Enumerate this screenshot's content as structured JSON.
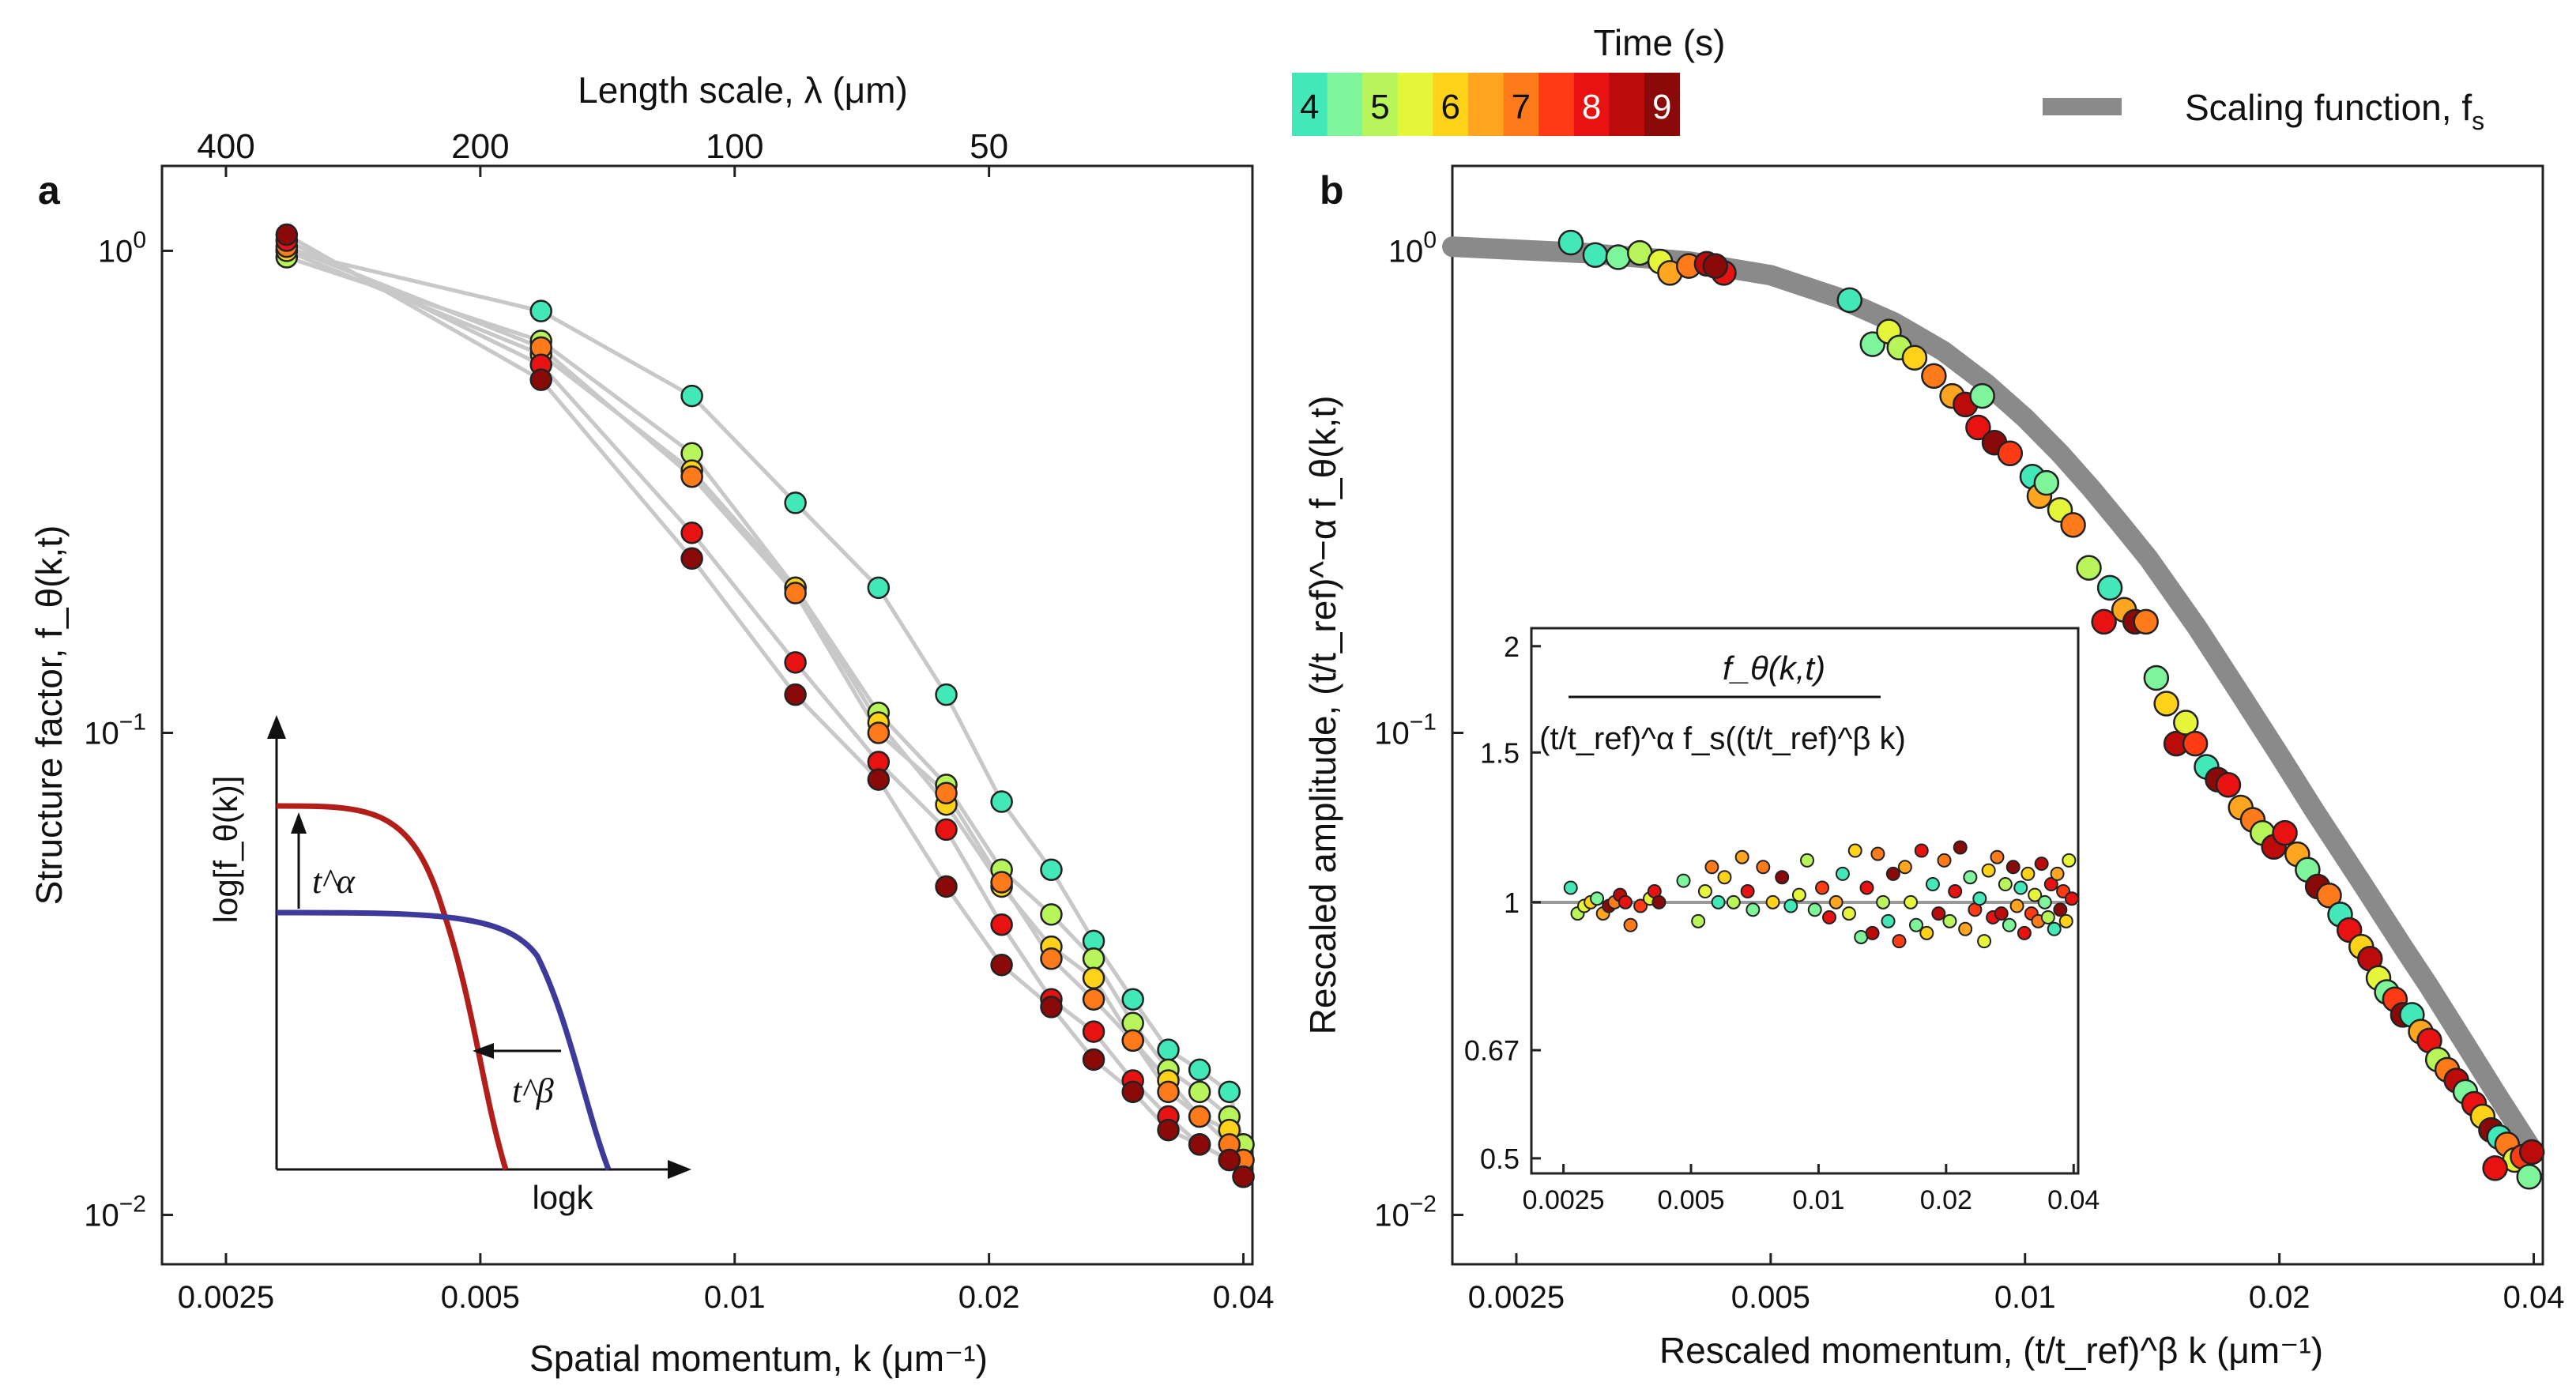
{
  "colorbar": {
    "title": "Time (s)",
    "labels": [
      "4",
      "5",
      "6",
      "7",
      "8",
      "9"
    ],
    "swatches": [
      "#43e8b8",
      "#7ef59a",
      "#b8f55a",
      "#e5f53a",
      "#ffd21a",
      "#ffa520",
      "#ff7a1a",
      "#ff3b14",
      "#e81212",
      "#bc0b0b",
      "#8a0a0a"
    ]
  },
  "legend": {
    "label": "Scaling function, f",
    "sub": "s",
    "color": "#8a8a8a"
  },
  "panel_a": {
    "label": "a",
    "top_axis_title": "Length scale, λ (μm)",
    "top_ticks": [
      {
        "label": "400",
        "k": 0.0025
      },
      {
        "label": "200",
        "k": 0.005
      },
      {
        "label": "100",
        "k": 0.01
      },
      {
        "label": "50",
        "k": 0.02
      }
    ],
    "xlabel": "Spatial momentum, k (μm⁻¹)",
    "ylabel": "Structure factor, f_θ(k,t)",
    "inset": {
      "ylabel": "log[f_θ(k)]",
      "xlabel": "logk",
      "arrow_up": "t^α",
      "arrow_left": "t^β",
      "line_colors": [
        "#b21f1a",
        "#3d3a9c"
      ]
    }
  },
  "panel_b": {
    "label": "b",
    "xlabel": "Rescaled momentum, (t/t_ref)^β k (μm⁻¹)",
    "ylabel": "Rescaled amplitude, (t/t_ref)^−α f_θ(k,t)",
    "inset": {
      "numerator": "f_θ(k,t)",
      "denominator": "(t/t_ref)^α f_s((t/t_ref)^β k)",
      "yticks": [
        "2",
        "1.5",
        "1",
        "0.67",
        "0.5"
      ],
      "xticks": [
        "0.0025",
        "0.005",
        "0.01",
        "0.02",
        "0.04"
      ]
    }
  },
  "chart_data": [
    {
      "type": "scatter",
      "title": "a",
      "xscale": "log",
      "yscale": "log",
      "xlim": [
        0.0021,
        0.041
      ],
      "ylim": [
        0.0079,
        1.5
      ],
      "xticks": [
        0.0025,
        0.005,
        0.01,
        0.02,
        0.04
      ],
      "xtick_labels": [
        "0.0025",
        "0.005",
        "0.01",
        "0.02",
        "0.04"
      ],
      "yticks": [
        1,
        0.1,
        0.01
      ],
      "ytick_labels": [
        "10",
        "10",
        "10"
      ],
      "ytick_exps": [
        "0",
        "−1",
        "−2"
      ],
      "k": [
        0.00295,
        0.0059,
        0.0089,
        0.0118,
        0.0148,
        0.0178,
        0.0207,
        0.0237,
        0.0266,
        0.0296,
        0.0326,
        0.0355,
        0.0385,
        0.04
      ],
      "series": [
        {
          "name": "t=4 s",
          "color": "#43e8b8",
          "values": [
            1.0,
            0.75,
            0.5,
            0.3,
            0.2,
            0.12,
            0.072,
            0.052,
            0.037,
            0.028,
            0.022,
            0.02,
            0.018,
            0.014
          ]
        },
        {
          "name": "t=5 s",
          "color": "#b8f55a",
          "values": [
            0.97,
            0.65,
            0.38,
            0.2,
            0.11,
            0.078,
            0.052,
            0.042,
            0.034,
            0.025,
            0.02,
            0.018,
            0.016,
            0.014
          ]
        },
        {
          "name": "t=6 s",
          "color": "#ffd21a",
          "values": [
            1.0,
            0.61,
            0.35,
            0.2,
            0.105,
            0.071,
            0.048,
            0.036,
            0.031,
            0.023,
            0.019,
            0.016,
            0.015,
            0.013
          ]
        },
        {
          "name": "t=7 s",
          "color": "#ff7a1a",
          "values": [
            1.02,
            0.63,
            0.34,
            0.195,
            0.1,
            0.075,
            0.049,
            0.034,
            0.028,
            0.023,
            0.018,
            0.016,
            0.014,
            0.013
          ]
        },
        {
          "name": "t=8 s",
          "color": "#e81212",
          "values": [
            1.05,
            0.58,
            0.26,
            0.14,
            0.087,
            0.063,
            0.04,
            0.028,
            0.024,
            0.019,
            0.016,
            0.014,
            0.013,
            0.012
          ]
        },
        {
          "name": "t=9 s",
          "color": "#8a0a0a",
          "values": [
            1.08,
            0.54,
            0.23,
            0.12,
            0.08,
            0.048,
            0.033,
            0.027,
            0.021,
            0.018,
            0.015,
            0.014,
            0.013,
            0.012
          ]
        }
      ]
    },
    {
      "type": "scatter",
      "title": "b",
      "xscale": "log",
      "yscale": "log",
      "xlim": [
        0.0021,
        0.041
      ],
      "ylim": [
        0.0079,
        1.5
      ],
      "xticks": [
        0.0025,
        0.005,
        0.01,
        0.02,
        0.04
      ],
      "xtick_labels": [
        "0.0025",
        "0.005",
        "0.01",
        "0.02",
        "0.04"
      ],
      "yticks": [
        1,
        0.1,
        0.01
      ],
      "ytick_labels": [
        "10",
        "10",
        "10"
      ],
      "ytick_exps": [
        "0",
        "−1",
        "−2"
      ],
      "scaling_function": {
        "x": [
          0.0021,
          0.003,
          0.004,
          0.005,
          0.006,
          0.007,
          0.008,
          0.009,
          0.01,
          0.011,
          0.012,
          0.013,
          0.014,
          0.016,
          0.018,
          0.02,
          0.022,
          0.025,
          0.028,
          0.03,
          0.033,
          0.036,
          0.04
        ],
        "y": [
          1.02,
          0.99,
          0.95,
          0.89,
          0.8,
          0.71,
          0.62,
          0.53,
          0.45,
          0.38,
          0.32,
          0.27,
          0.23,
          0.165,
          0.12,
          0.09,
          0.069,
          0.049,
          0.036,
          0.03,
          0.023,
          0.018,
          0.0135
        ]
      },
      "points": [
        [
          0.0029,
          1.04,
          "#43e8b8"
        ],
        [
          0.0031,
          0.98,
          "#43e8b8"
        ],
        [
          0.0033,
          0.97,
          "#7ef59a"
        ],
        [
          0.0035,
          0.99,
          "#b8f55a"
        ],
        [
          0.0037,
          0.95,
          "#e5f53a"
        ],
        [
          0.0038,
          0.9,
          "#ffa520"
        ],
        [
          0.004,
          0.93,
          "#ff7a1a"
        ],
        [
          0.0042,
          0.94,
          "#bc0b0b"
        ],
        [
          0.0044,
          0.9,
          "#e81212"
        ],
        [
          0.0043,
          0.93,
          "#8a0a0a"
        ],
        [
          0.0062,
          0.79,
          "#43e8b8"
        ],
        [
          0.0066,
          0.64,
          "#7ef59a"
        ],
        [
          0.0069,
          0.68,
          "#e5f53a"
        ],
        [
          0.0071,
          0.63,
          "#b8f55a"
        ],
        [
          0.0074,
          0.6,
          "#ffd21a"
        ],
        [
          0.0078,
          0.55,
          "#ff7a1a"
        ],
        [
          0.0082,
          0.5,
          "#ffa520"
        ],
        [
          0.0085,
          0.48,
          "#bc0b0b"
        ],
        [
          0.0089,
          0.5,
          "#7ef59a"
        ],
        [
          0.0088,
          0.43,
          "#e81212"
        ],
        [
          0.0092,
          0.4,
          "#8a0a0a"
        ],
        [
          0.0096,
          0.38,
          "#ff3b14"
        ],
        [
          0.0102,
          0.34,
          "#43e8b8"
        ],
        [
          0.0104,
          0.31,
          "#ffa520"
        ],
        [
          0.0106,
          0.33,
          "#7ef59a"
        ],
        [
          0.011,
          0.29,
          "#e5f53a"
        ],
        [
          0.0114,
          0.27,
          "#ff7a1a"
        ],
        [
          0.0119,
          0.22,
          "#b8f55a"
        ],
        [
          0.0124,
          0.17,
          "#e81212"
        ],
        [
          0.0126,
          0.2,
          "#43e8b8"
        ],
        [
          0.0131,
          0.18,
          "#ffa520"
        ],
        [
          0.0135,
          0.17,
          "#8a0a0a"
        ],
        [
          0.0139,
          0.17,
          "#ff7a1a"
        ],
        [
          0.0143,
          0.13,
          "#7ef59a"
        ],
        [
          0.0147,
          0.115,
          "#ffd21a"
        ],
        [
          0.0151,
          0.095,
          "#bc0b0b"
        ],
        [
          0.0155,
          0.105,
          "#e5f53a"
        ],
        [
          0.0159,
          0.095,
          "#ff3b14"
        ],
        [
          0.0164,
          0.085,
          "#43e8b8"
        ],
        [
          0.0169,
          0.08,
          "#8a0a0a"
        ],
        [
          0.0174,
          0.078,
          "#e81212"
        ],
        [
          0.018,
          0.07,
          "#ffa520"
        ],
        [
          0.0186,
          0.066,
          "#ff7a1a"
        ],
        [
          0.0191,
          0.062,
          "#b8f55a"
        ],
        [
          0.0197,
          0.058,
          "#bc0b0b"
        ],
        [
          0.0203,
          0.062,
          "#e81212"
        ],
        [
          0.021,
          0.056,
          "#ffa520"
        ],
        [
          0.0216,
          0.052,
          "#7ef59a"
        ],
        [
          0.0222,
          0.048,
          "#8a0a0a"
        ],
        [
          0.0229,
          0.046,
          "#ff7a1a"
        ],
        [
          0.0236,
          0.042,
          "#43e8b8"
        ],
        [
          0.0242,
          0.039,
          "#e81212"
        ],
        [
          0.025,
          0.036,
          "#ffd21a"
        ],
        [
          0.0256,
          0.034,
          "#bc0b0b"
        ],
        [
          0.0262,
          0.031,
          "#e5f53a"
        ],
        [
          0.0268,
          0.029,
          "#7ef59a"
        ],
        [
          0.0274,
          0.028,
          "#ff3b14"
        ],
        [
          0.028,
          0.026,
          "#8a0a0a"
        ],
        [
          0.0287,
          0.026,
          "#43e8b8"
        ],
        [
          0.0294,
          0.024,
          "#ffa520"
        ],
        [
          0.0301,
          0.023,
          "#e81212"
        ],
        [
          0.0308,
          0.021,
          "#b8f55a"
        ],
        [
          0.0316,
          0.02,
          "#ff7a1a"
        ],
        [
          0.0324,
          0.019,
          "#bc0b0b"
        ],
        [
          0.0332,
          0.018,
          "#7ef59a"
        ],
        [
          0.034,
          0.017,
          "#e81212"
        ],
        [
          0.0348,
          0.016,
          "#ffd21a"
        ],
        [
          0.0356,
          0.015,
          "#8a0a0a"
        ],
        [
          0.0364,
          0.0145,
          "#43e8b8"
        ],
        [
          0.0372,
          0.014,
          "#ff7a1a"
        ],
        [
          0.038,
          0.013,
          "#e5f53a"
        ],
        [
          0.0388,
          0.0132,
          "#ff3b14"
        ],
        [
          0.0395,
          0.012,
          "#7ef59a"
        ],
        [
          0.0398,
          0.0135,
          "#bc0b0b"
        ],
        [
          0.036,
          0.0125,
          "#e81212"
        ]
      ],
      "inset_ratio_points": [
        [
          0.0026,
          1.04,
          "#43e8b8"
        ],
        [
          0.0027,
          0.97,
          "#b8f55a"
        ],
        [
          0.0028,
          0.99,
          "#e5f53a"
        ],
        [
          0.0029,
          1.0,
          "#ffd21a"
        ],
        [
          0.003,
          1.01,
          "#7ef59a"
        ],
        [
          0.0031,
          0.97,
          "#ffa520"
        ],
        [
          0.0032,
          0.99,
          "#8a0a0a"
        ],
        [
          0.0033,
          1.0,
          "#ff7a1a"
        ],
        [
          0.0034,
          1.02,
          "#bc0b0b"
        ],
        [
          0.0035,
          1.0,
          "#e81212"
        ],
        [
          0.0036,
          0.94,
          "#ff7a1a"
        ],
        [
          0.0038,
          0.99,
          "#ff3b14"
        ],
        [
          0.004,
          1.01,
          "#e5f53a"
        ],
        [
          0.0041,
          1.03,
          "#e81212"
        ],
        [
          0.0042,
          1.0,
          "#8a0a0a"
        ],
        [
          0.0048,
          1.06,
          "#7ef59a"
        ],
        [
          0.0052,
          0.95,
          "#b8f55a"
        ],
        [
          0.0054,
          1.03,
          "#e5f53a"
        ],
        [
          0.0056,
          1.1,
          "#ff7a1a"
        ],
        [
          0.0058,
          1.0,
          "#43e8b8"
        ],
        [
          0.006,
          1.07,
          "#ffd21a"
        ],
        [
          0.0063,
          1.0,
          "#b8f55a"
        ],
        [
          0.0066,
          1.13,
          "#ffa520"
        ],
        [
          0.0068,
          1.03,
          "#e81212"
        ],
        [
          0.007,
          0.98,
          "#7ef59a"
        ],
        [
          0.0074,
          1.1,
          "#ff7a1a"
        ],
        [
          0.0078,
          1.0,
          "#ffd21a"
        ],
        [
          0.0082,
          1.07,
          "#8a0a0a"
        ],
        [
          0.0086,
          0.99,
          "#43e8b8"
        ],
        [
          0.009,
          1.02,
          "#e5f53a"
        ],
        [
          0.0094,
          1.12,
          "#b8f55a"
        ],
        [
          0.0098,
          0.98,
          "#7ef59a"
        ],
        [
          0.0102,
          1.04,
          "#ff3b14"
        ],
        [
          0.0106,
          0.96,
          "#e81212"
        ],
        [
          0.011,
          1.0,
          "#ffa520"
        ],
        [
          0.0114,
          1.08,
          "#43e8b8"
        ],
        [
          0.0118,
          0.97,
          "#e5f53a"
        ],
        [
          0.0122,
          1.15,
          "#ffd21a"
        ],
        [
          0.0126,
          0.91,
          "#7ef59a"
        ],
        [
          0.013,
          1.04,
          "#e81212"
        ],
        [
          0.0134,
          0.92,
          "#bc0b0b"
        ],
        [
          0.0138,
          1.14,
          "#ff7a1a"
        ],
        [
          0.0142,
          1.0,
          "#b8f55a"
        ],
        [
          0.0146,
          0.95,
          "#43e8b8"
        ],
        [
          0.015,
          1.08,
          "#8a0a0a"
        ],
        [
          0.0155,
          0.9,
          "#ff3b14"
        ],
        [
          0.016,
          1.1,
          "#ffa520"
        ],
        [
          0.0165,
          1.0,
          "#e5f53a"
        ],
        [
          0.017,
          0.94,
          "#7ef59a"
        ],
        [
          0.0175,
          1.15,
          "#e81212"
        ],
        [
          0.018,
          0.92,
          "#ffd21a"
        ],
        [
          0.0186,
          1.05,
          "#43e8b8"
        ],
        [
          0.0192,
          0.97,
          "#bc0b0b"
        ],
        [
          0.0198,
          1.12,
          "#ff7a1a"
        ],
        [
          0.0204,
          0.95,
          "#b8f55a"
        ],
        [
          0.021,
          1.03,
          "#e81212"
        ],
        [
          0.0216,
          1.16,
          "#8a0a0a"
        ],
        [
          0.0222,
          0.93,
          "#ffa520"
        ],
        [
          0.0228,
          1.07,
          "#7ef59a"
        ],
        [
          0.0234,
          0.98,
          "#ff3b14"
        ],
        [
          0.024,
          1.01,
          "#43e8b8"
        ],
        [
          0.0246,
          0.9,
          "#e5f53a"
        ],
        [
          0.0252,
          1.09,
          "#ffd21a"
        ],
        [
          0.0258,
          0.96,
          "#e81212"
        ],
        [
          0.0264,
          1.13,
          "#ff7a1a"
        ],
        [
          0.027,
          0.97,
          "#bc0b0b"
        ],
        [
          0.0276,
          1.05,
          "#b8f55a"
        ],
        [
          0.0282,
          0.94,
          "#7ef59a"
        ],
        [
          0.0288,
          1.1,
          "#8a0a0a"
        ],
        [
          0.0294,
          0.99,
          "#ffa520"
        ],
        [
          0.03,
          1.04,
          "#43e8b8"
        ],
        [
          0.0306,
          0.92,
          "#e81212"
        ],
        [
          0.0312,
          1.08,
          "#ffd21a"
        ],
        [
          0.0318,
          0.97,
          "#ff3b14"
        ],
        [
          0.0324,
          1.02,
          "#e5f53a"
        ],
        [
          0.033,
          0.95,
          "#ff7a1a"
        ],
        [
          0.0336,
          1.11,
          "#bc0b0b"
        ],
        [
          0.0342,
          1.0,
          "#7ef59a"
        ],
        [
          0.0348,
          0.96,
          "#b8f55a"
        ],
        [
          0.0354,
          1.05,
          "#e81212"
        ],
        [
          0.036,
          0.93,
          "#43e8b8"
        ],
        [
          0.0366,
          1.08,
          "#ffa520"
        ],
        [
          0.0372,
          0.98,
          "#8a0a0a"
        ],
        [
          0.0378,
          1.03,
          "#ff3b14"
        ],
        [
          0.0384,
          0.95,
          "#ffd21a"
        ],
        [
          0.039,
          1.12,
          "#e5f53a"
        ],
        [
          0.0396,
          1.01,
          "#e81212"
        ]
      ]
    }
  ]
}
